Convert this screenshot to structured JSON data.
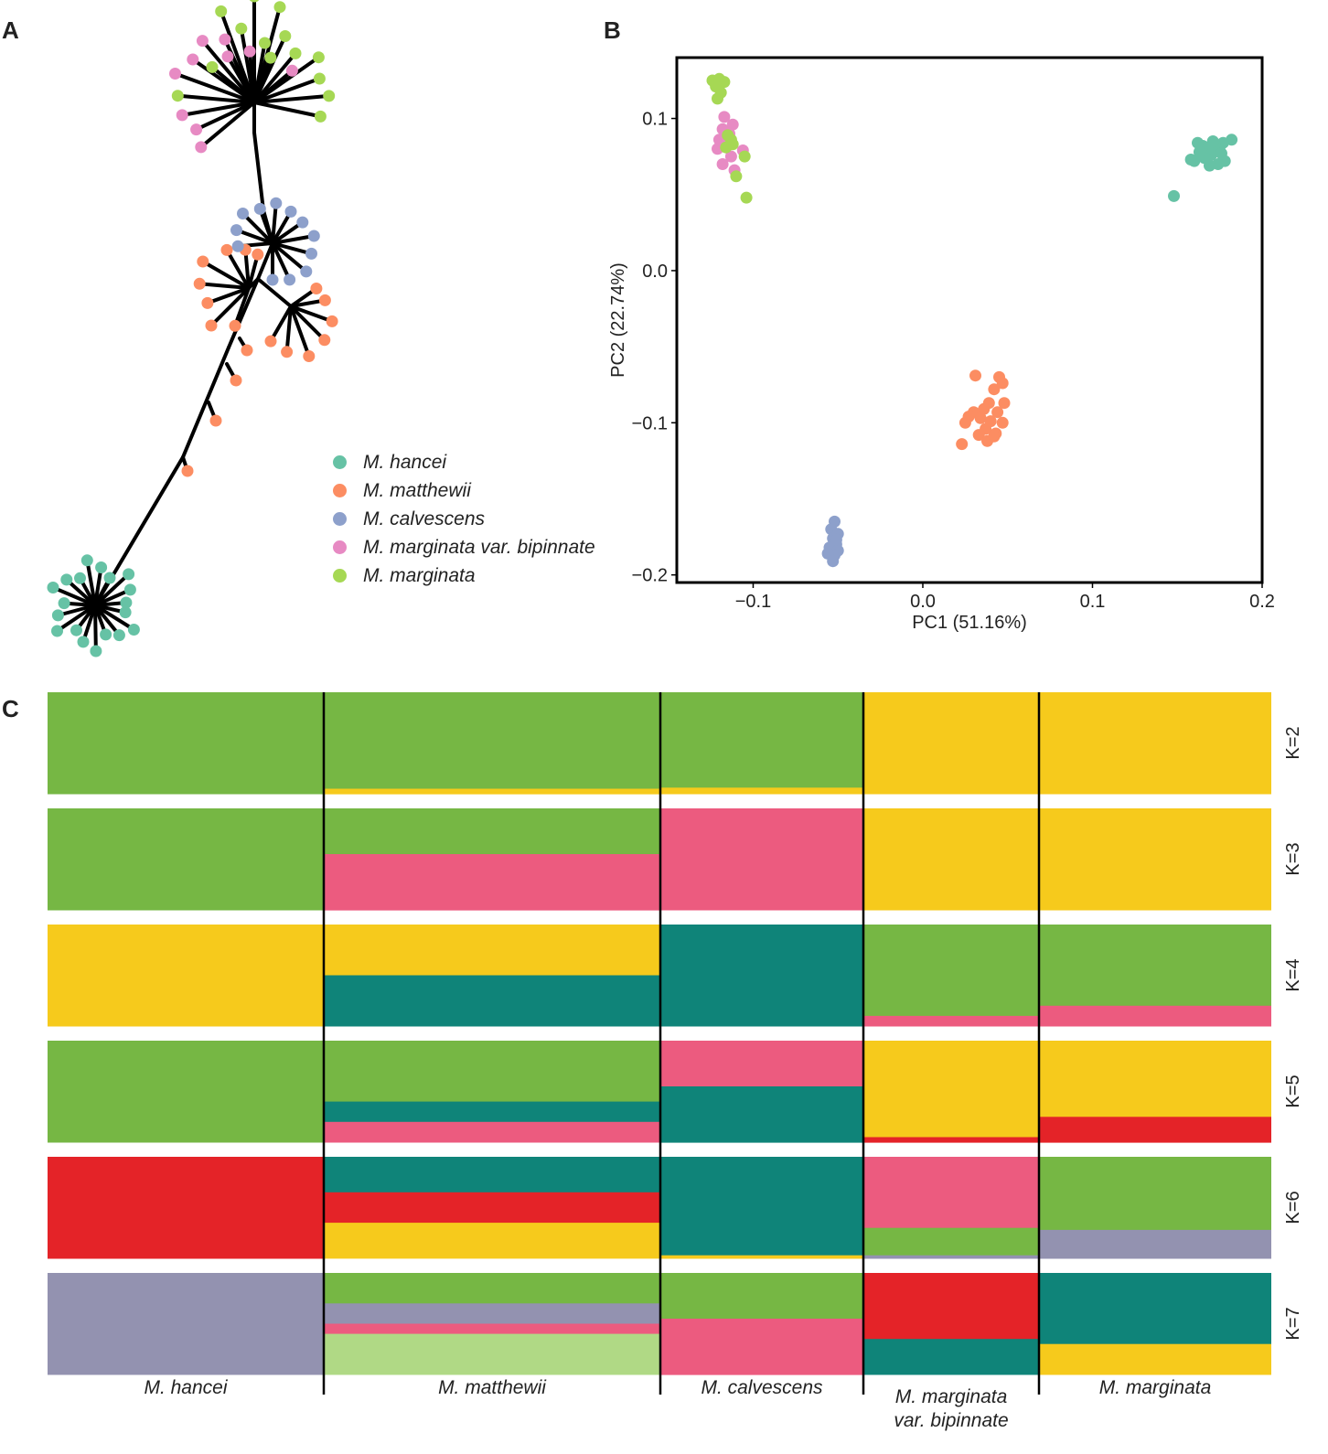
{
  "panels": {
    "a": "A",
    "b": "B",
    "c": "C"
  },
  "legend": [
    {
      "name": "M. hancei",
      "color": "#66c2a5"
    },
    {
      "name": "M. matthewii",
      "color": "#fc8d62"
    },
    {
      "name": "M. calvescens",
      "color": "#8da0cb"
    },
    {
      "name": "M. marginata var. bipinnate",
      "color": "#e78ac3"
    },
    {
      "name": "M. marginata",
      "color": "#a6d854"
    }
  ],
  "colors": {
    "green": "#76b744",
    "yellow": "#f6ca1c",
    "pink": "#ec5b7f",
    "teal": "#0f8479",
    "red": "#e42328",
    "grey": "#9392b0",
    "lightgreen": "#b0d985"
  },
  "chart_data": [
    {
      "type": "scatter",
      "title": "B",
      "xlabel": "PC1 (51.16%)",
      "ylabel": "PC2 (22.74%)",
      "xlim": [
        -0.145,
        0.2
      ],
      "ylim": [
        -0.205,
        0.14
      ],
      "xticks": [
        -0.1,
        0.0,
        0.1,
        0.2
      ],
      "xtick_labels": [
        "−0.1",
        "0.0",
        "0.1",
        "0.2"
      ],
      "yticks": [
        -0.2,
        -0.1,
        0.0,
        0.1
      ],
      "ytick_labels": [
        "−0.2",
        "−0.1",
        "0.0",
        "0.1"
      ],
      "series": [
        {
          "name": "M. hancei",
          "color": "#66c2a5",
          "points": [
            [
              0.182,
              0.086
            ],
            [
              0.177,
              0.084
            ],
            [
              0.175,
              0.079
            ],
            [
              0.172,
              0.083
            ],
            [
              0.17,
              0.076
            ],
            [
              0.168,
              0.08
            ],
            [
              0.166,
              0.074
            ],
            [
              0.165,
              0.082
            ],
            [
              0.163,
              0.078
            ],
            [
              0.16,
              0.072
            ],
            [
              0.178,
              0.072
            ],
            [
              0.174,
              0.07
            ],
            [
              0.171,
              0.085
            ],
            [
              0.169,
              0.069
            ],
            [
              0.176,
              0.077
            ],
            [
              0.162,
              0.084
            ],
            [
              0.158,
              0.073
            ],
            [
              0.148,
              0.049
            ]
          ]
        },
        {
          "name": "M. matthewii",
          "color": "#fc8d62",
          "points": [
            [
              0.031,
              -0.069
            ],
            [
              0.045,
              -0.07
            ],
            [
              0.047,
              -0.074
            ],
            [
              0.042,
              -0.078
            ],
            [
              0.048,
              -0.087
            ],
            [
              0.039,
              -0.087
            ],
            [
              0.036,
              -0.091
            ],
            [
              0.044,
              -0.093
            ],
            [
              0.03,
              -0.093
            ],
            [
              0.027,
              -0.096
            ],
            [
              0.034,
              -0.097
            ],
            [
              0.04,
              -0.099
            ],
            [
              0.047,
              -0.1
            ],
            [
              0.025,
              -0.1
            ],
            [
              0.037,
              -0.104
            ],
            [
              0.043,
              -0.107
            ],
            [
              0.033,
              -0.108
            ],
            [
              0.038,
              -0.112
            ],
            [
              0.042,
              -0.109
            ],
            [
              0.023,
              -0.114
            ]
          ]
        },
        {
          "name": "M. calvescens",
          "color": "#8da0cb",
          "points": [
            [
              -0.052,
              -0.165
            ],
            [
              -0.054,
              -0.17
            ],
            [
              -0.05,
              -0.173
            ],
            [
              -0.053,
              -0.176
            ],
            [
              -0.051,
              -0.18
            ],
            [
              -0.055,
              -0.182
            ],
            [
              -0.05,
              -0.184
            ],
            [
              -0.052,
              -0.187
            ],
            [
              -0.056,
              -0.186
            ],
            [
              -0.053,
              -0.191
            ],
            [
              -0.051,
              -0.177
            ]
          ]
        },
        {
          "name": "M. marginata var. bipinnate",
          "color": "#e78ac3",
          "points": [
            [
              -0.117,
              0.101
            ],
            [
              -0.112,
              0.096
            ],
            [
              -0.118,
              0.093
            ],
            [
              -0.114,
              0.09
            ],
            [
              -0.12,
              0.086
            ],
            [
              -0.116,
              0.083
            ],
            [
              -0.121,
              0.08
            ],
            [
              -0.106,
              0.079
            ],
            [
              -0.113,
              0.075
            ],
            [
              -0.118,
              0.07
            ],
            [
              -0.111,
              0.066
            ]
          ]
        },
        {
          "name": "M. marginata",
          "color": "#a6d854",
          "points": [
            [
              -0.124,
              0.125
            ],
            [
              -0.12,
              0.126
            ],
            [
              -0.117,
              0.124
            ],
            [
              -0.122,
              0.121
            ],
            [
              -0.119,
              0.117
            ],
            [
              -0.121,
              0.113
            ],
            [
              -0.115,
              0.089
            ],
            [
              -0.113,
              0.086
            ],
            [
              -0.116,
              0.081
            ],
            [
              -0.112,
              0.083
            ],
            [
              -0.105,
              0.075
            ],
            [
              -0.11,
              0.062
            ],
            [
              -0.104,
              0.048
            ]
          ]
        }
      ]
    },
    {
      "type": "bar",
      "title": "C",
      "stacked": true,
      "populations": [
        {
          "name": "M. hancei",
          "line1": "M. hancei",
          "line2": ""
        },
        {
          "name": "M. matthewii",
          "line1": "M. matthewii",
          "line2": ""
        },
        {
          "name": "M. calvescens",
          "line1": "M. calvescens",
          "line2": ""
        },
        {
          "name": "M. marginata var. bipinnate",
          "line1": "M. marginata",
          "line2": "var. bipinnate"
        },
        {
          "name": "M. marginata",
          "line1": "M. marginata",
          "line2": ""
        }
      ],
      "individuals_per_population": [
        19,
        23,
        14,
        12,
        16
      ],
      "k_values": [
        "K=2",
        "K=3",
        "K=4",
        "K=5",
        "K=6",
        "K=7"
      ],
      "rows": [
        {
          "k": "K=2",
          "segments": [
            [
              [
                "green",
                1
              ]
            ],
            [
              [
                "green",
                0.95
              ],
              [
                "yellow",
                0.05
              ]
            ],
            [
              [
                "green",
                0.94
              ],
              [
                "yellow",
                0.06
              ]
            ],
            [
              [
                "yellow",
                1
              ]
            ],
            [
              [
                "yellow",
                1
              ]
            ]
          ]
        },
        {
          "k": "K=3",
          "segments": [
            [
              [
                "green",
                1
              ]
            ],
            [
              [
                "green",
                0.45
              ],
              [
                "pink",
                0.55
              ]
            ],
            [
              [
                "pink",
                1
              ]
            ],
            [
              [
                "yellow",
                1
              ]
            ],
            [
              [
                "yellow",
                1
              ]
            ]
          ]
        },
        {
          "k": "K=4",
          "segments": [
            [
              [
                "yellow",
                1
              ]
            ],
            [
              [
                "yellow",
                0.5
              ],
              [
                "teal",
                0.5
              ]
            ],
            [
              [
                "teal",
                1
              ]
            ],
            [
              [
                "green",
                0.9
              ],
              [
                "pink",
                0.1
              ]
            ],
            [
              [
                "green",
                0.8
              ],
              [
                "pink",
                0.2
              ]
            ]
          ]
        },
        {
          "k": "K=5",
          "segments": [
            [
              [
                "green",
                1
              ]
            ],
            [
              [
                "green",
                0.6
              ],
              [
                "teal",
                0.2
              ],
              [
                "pink",
                0.2
              ]
            ],
            [
              [
                "pink",
                0.45
              ],
              [
                "teal",
                0.55
              ]
            ],
            [
              [
                "yellow",
                0.95
              ],
              [
                "red",
                0.05
              ]
            ],
            [
              [
                "yellow",
                0.75
              ],
              [
                "red",
                0.25
              ]
            ]
          ]
        },
        {
          "k": "K=6",
          "segments": [
            [
              [
                "red",
                1
              ]
            ],
            [
              [
                "teal",
                0.35
              ],
              [
                "red",
                0.3
              ],
              [
                "yellow",
                0.35
              ]
            ],
            [
              [
                "teal",
                0.97
              ],
              [
                "yellow",
                0.03
              ]
            ],
            [
              [
                "pink",
                0.7
              ],
              [
                "green",
                0.27
              ],
              [
                "grey",
                0.03
              ]
            ],
            [
              [
                "green",
                0.72
              ],
              [
                "grey",
                0.28
              ]
            ]
          ]
        },
        {
          "k": "K=7",
          "segments": [
            [
              [
                "grey",
                1
              ]
            ],
            [
              [
                "green",
                0.3
              ],
              [
                "grey",
                0.2
              ],
              [
                "pink",
                0.1
              ],
              [
                "lightgreen",
                0.4
              ]
            ],
            [
              [
                "green",
                0.45
              ],
              [
                "pink",
                0.55
              ]
            ],
            [
              [
                "red",
                0.65
              ],
              [
                "teal",
                0.35
              ]
            ],
            [
              [
                "teal",
                0.7
              ],
              [
                "yellow",
                0.3
              ]
            ]
          ]
        }
      ]
    }
  ]
}
